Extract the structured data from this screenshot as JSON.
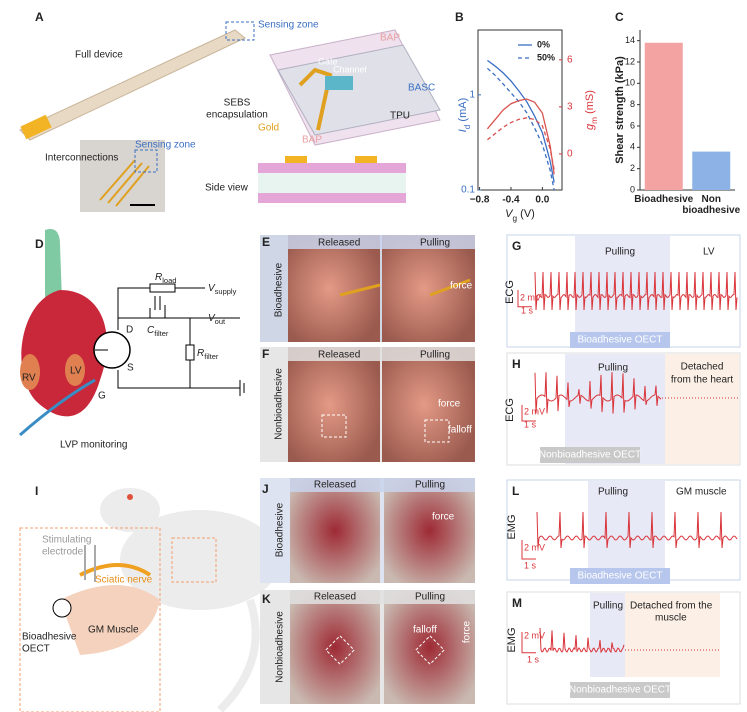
{
  "panels": {
    "A": {
      "label": "A",
      "sensing_zone": "Sensing zone",
      "full_device": "Full device",
      "bap_top": "BAP",
      "gate": "Gate",
      "channel": "Channel",
      "sebs": [
        "SEBS",
        "encapsulation"
      ],
      "gold": "Gold",
      "basc": "BASC",
      "tpu": "TPU",
      "bap_bottom": "BAP",
      "interconnections": "Interconnections",
      "sensing_zone_inset": "Sensing zone",
      "side_view": "Side view"
    },
    "D": {
      "label": "D",
      "r_load": {
        "main": "R",
        "sub": "load"
      },
      "v_supply": {
        "main": "V",
        "sub": "supply"
      },
      "c_filter": {
        "main": "C",
        "sub": "filter"
      },
      "v_out": {
        "main": "V",
        "sub": "out"
      },
      "r_filter": {
        "main": "R",
        "sub": "filter"
      },
      "drain": "D",
      "source": "S",
      "gate": "G",
      "rv": "RV",
      "lv": "LV",
      "monitoring": "LVP monitoring"
    },
    "E": {
      "label": "E",
      "released": "Released",
      "pulling": "Pulling",
      "side": "Bioadhesive",
      "force": "force"
    },
    "F": {
      "label": "F",
      "released": "Released",
      "pulling": "Pulling",
      "side": "Nonbioadhesive",
      "force": "force",
      "falloff": "falloff"
    },
    "G": {
      "label": "G",
      "pulling": "Pulling",
      "site": "LV",
      "signal": "ECG",
      "scale_v": "2 mV",
      "scale_t": "1 s",
      "device": "Bioadhesive OECT"
    },
    "H": {
      "label": "H",
      "pulling": "Pulling",
      "detached": [
        "Detached",
        "from the heart"
      ],
      "signal": "ECG",
      "scale_v": "2 mV",
      "scale_t": "1 s",
      "device": "Nonbioadhesive OECT"
    },
    "I": {
      "label": "I",
      "electrode": [
        "Stimulating",
        "electrode"
      ],
      "nerve": "Sciatic nerve",
      "device": [
        "Bioadhesive",
        "OECT"
      ],
      "muscle": "GM Muscle"
    },
    "J": {
      "label": "J",
      "released": "Released",
      "pulling": "Pulling",
      "side": "Bioadhesive",
      "force": "force"
    },
    "K": {
      "label": "K",
      "released": "Released",
      "pulling": "Pulling",
      "side": "Nonbioadhesive",
      "falloff": "falloff",
      "force": "force"
    },
    "L": {
      "label": "L",
      "pulling": "Pulling",
      "site": "GM muscle",
      "signal": "EMG",
      "scale_v": "2 mV",
      "scale_t": "1 s",
      "device": "Bioadhesive OECT"
    },
    "M": {
      "label": "M",
      "pulling": "Pulling",
      "detached": [
        "Detached from the",
        "muscle"
      ],
      "signal": "EMG",
      "scale_v": "2 mV",
      "scale_t": "1 s",
      "device": "Nonbioadhesive OECT"
    }
  },
  "chart_data": [
    {
      "type": "line",
      "panel_label": "B",
      "x": [
        -0.7,
        -0.6,
        -0.5,
        -0.4,
        -0.3,
        -0.2,
        -0.1,
        0,
        0.1,
        0.15
      ],
      "xlabel": {
        "main": "V",
        "sub": "g",
        "tail": " (V)"
      },
      "ylabel": {
        "main": "I",
        "sub": "d",
        "tail": " (mA)"
      },
      "y2label": {
        "main": "g",
        "sub": "m",
        "tail": " (mS)"
      },
      "xlim": [
        -0.82,
        0.25
      ],
      "xticks": [
        {
          "value": -0.8,
          "label": "−0.8"
        },
        {
          "value": -0.4,
          "label": "-0.4"
        },
        {
          "value": 0,
          "label": "0.0"
        }
      ],
      "ylim": [
        0.1,
        4.8
      ],
      "log_y": true,
      "yticks": [
        0.1,
        1
      ],
      "y2lim": [
        -2.3,
        7.9
      ],
      "y2ticks": [
        0,
        3,
        6
      ],
      "legend": [
        {
          "label": "0%",
          "dash": false,
          "color": "#3a6fc4"
        },
        {
          "label": "50%",
          "dash": true,
          "color": "#3a6fc4"
        }
      ],
      "series": [
        {
          "color": "#3a6fc4",
          "dash": false,
          "values": [
            2.3,
            2.0,
            1.7,
            1.4,
            1.1,
            0.85,
            0.6,
            0.4,
            0.2,
            0.12
          ]
        },
        {
          "color": "#3a6fc4",
          "dash": true,
          "values": [
            1.9,
            1.6,
            1.3,
            1.05,
            0.85,
            0.65,
            0.45,
            0.3,
            0.16,
            0.1
          ]
        },
        {
          "color": "#d9534f",
          "dash": false,
          "axis": "y2",
          "values": [
            1.6,
            2.2,
            2.8,
            3.2,
            3.4,
            3.5,
            3.3,
            2.6,
            0.5,
            -1.3
          ]
        },
        {
          "color": "#d9534f",
          "dash": true,
          "axis": "y2",
          "values": [
            0.9,
            1.3,
            1.7,
            2.0,
            2.2,
            2.3,
            2.2,
            1.8,
            0.3,
            -1.0
          ]
        }
      ]
    },
    {
      "type": "bar",
      "panel_label": "C",
      "ylabel": "Shear strength (kPa)",
      "categories": [
        "Bioadhesive",
        "Non bioadhesive"
      ],
      "values": [
        13.8,
        3.6
      ],
      "colors": [
        "#f4a3a3",
        "#8cb2e6"
      ],
      "ylim": [
        0,
        15
      ],
      "yticks": [
        0,
        2,
        4,
        6,
        8,
        10,
        12,
        14
      ]
    }
  ]
}
